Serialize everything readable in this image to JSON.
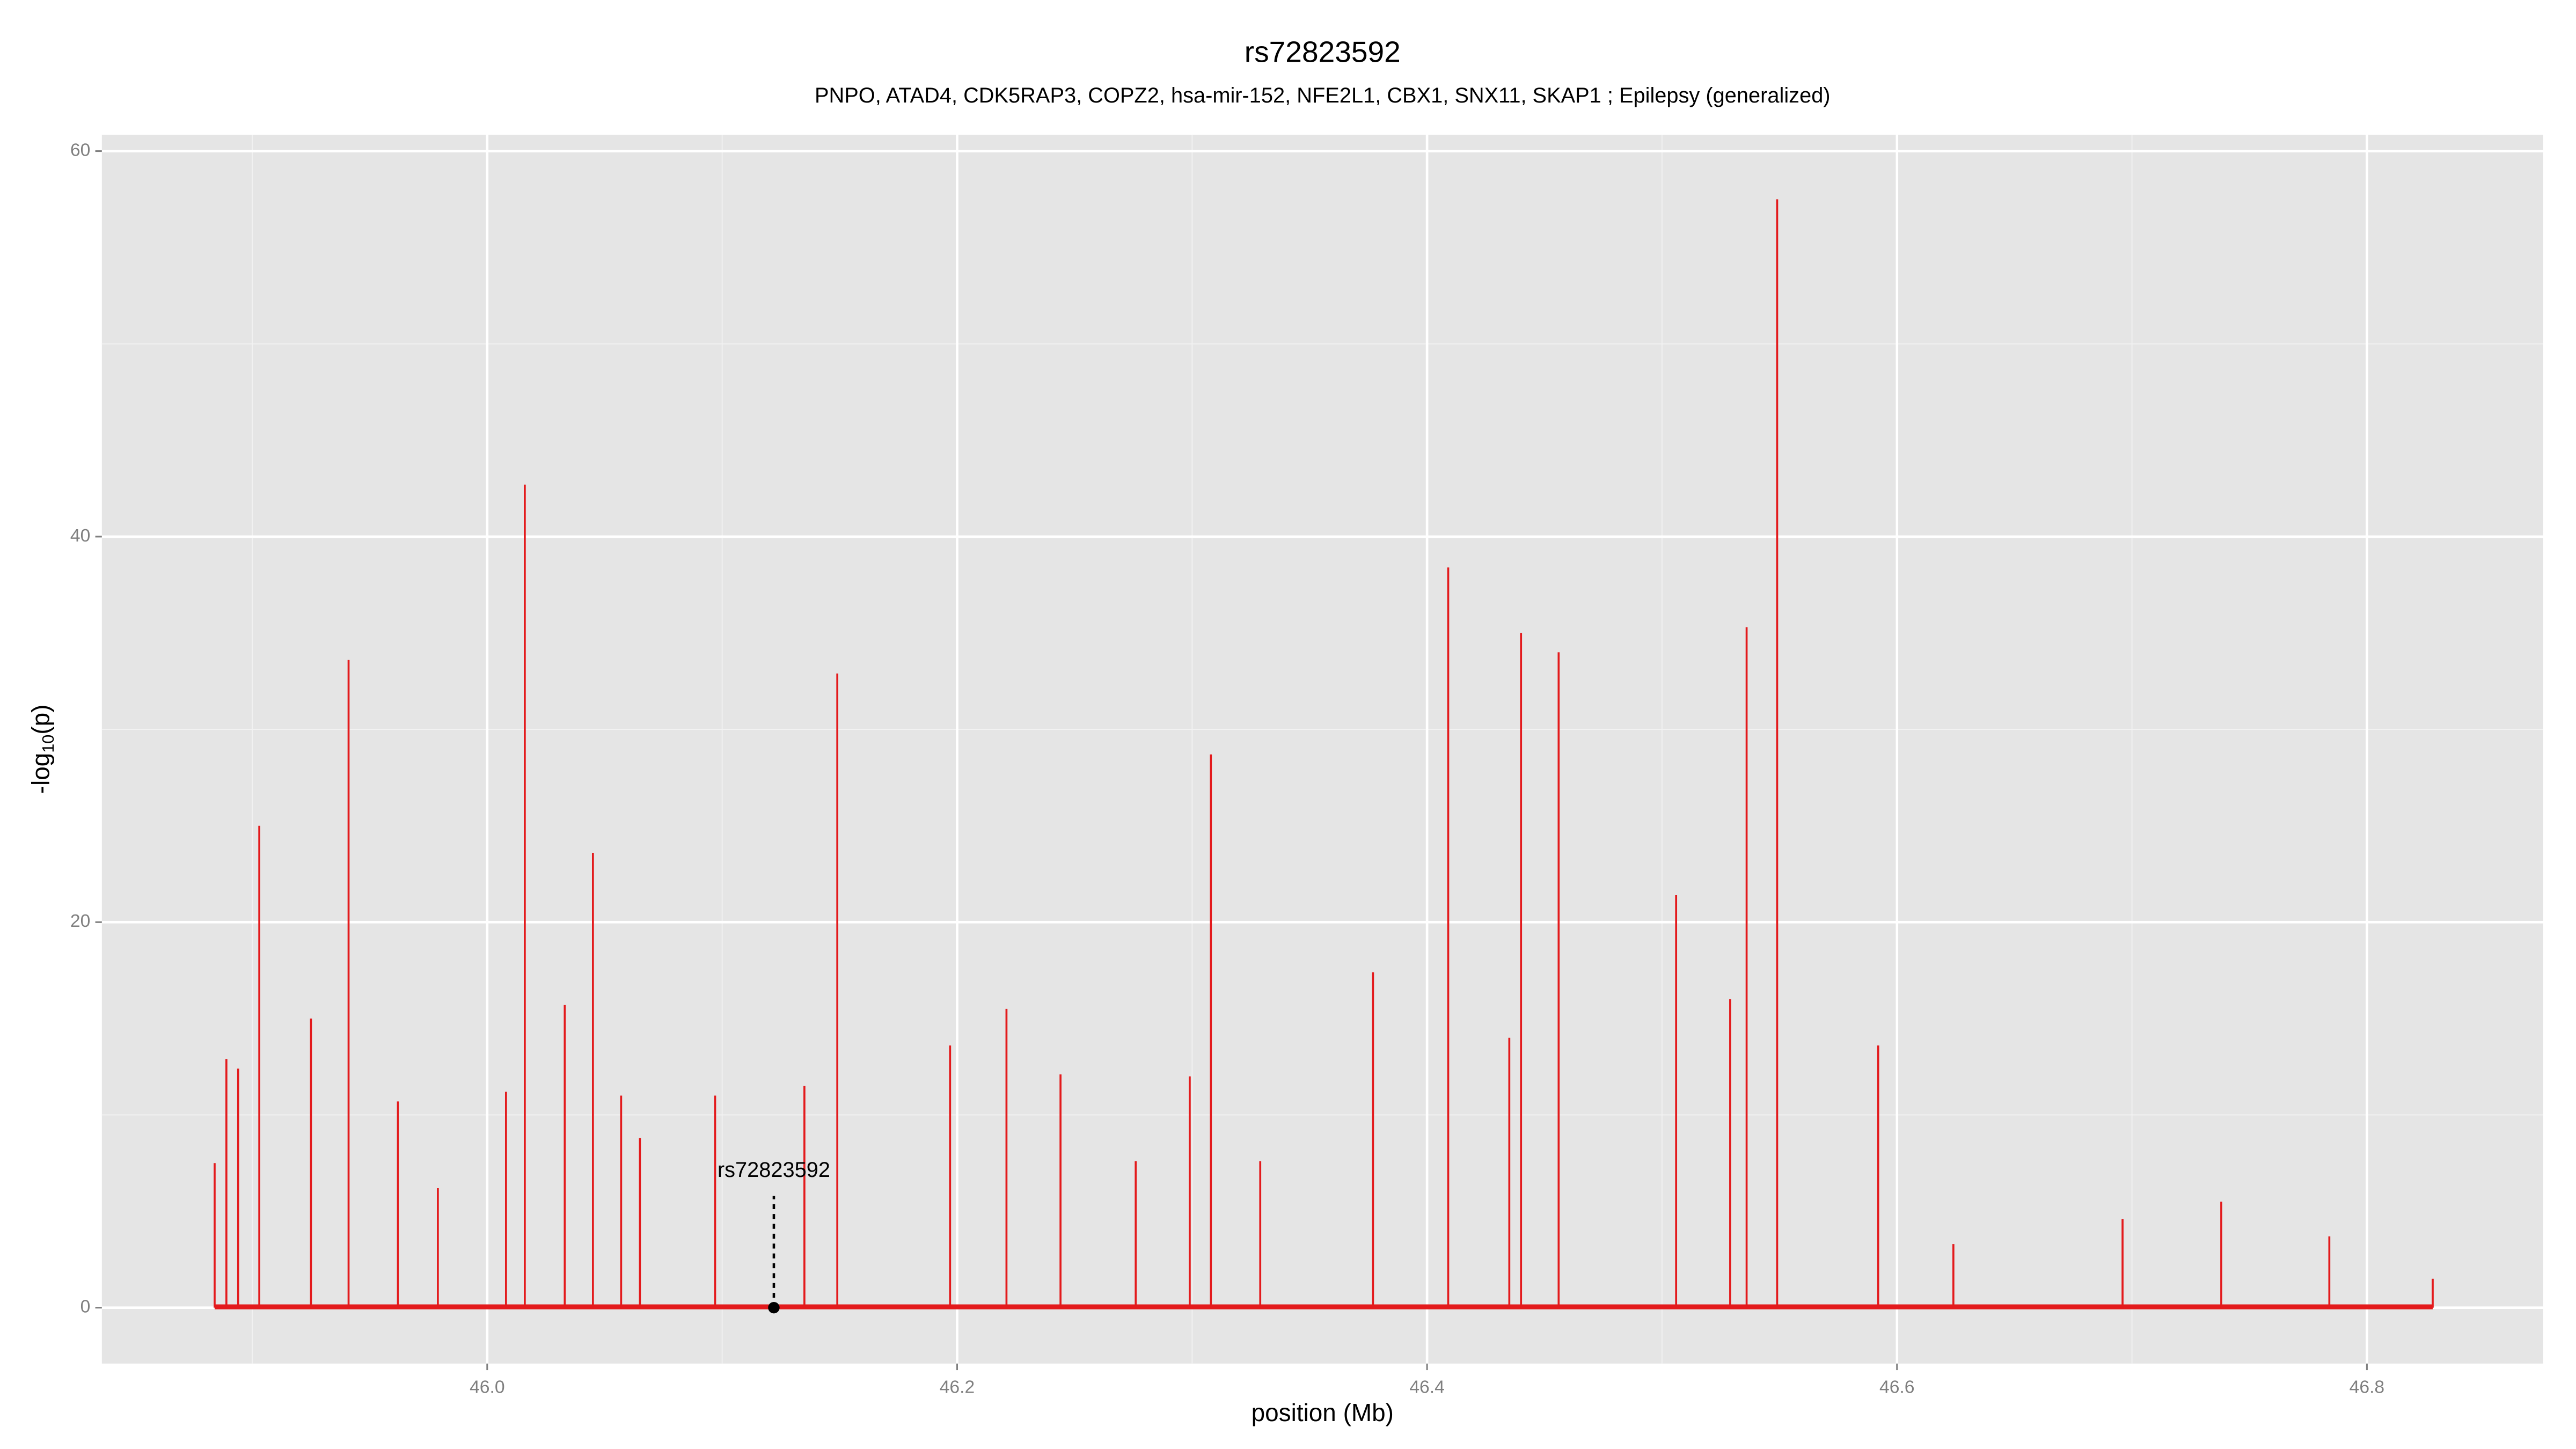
{
  "chart_data": {
    "type": "spike",
    "title": "rs72823592",
    "subtitle": "PNPO, ATAD4, CDK5RAP3, COPZ2, hsa-mir-152, NFE2L1, CBX1, SNX11, SKAP1 ; Epilepsy (generalized)",
    "x_label": "position (Mb)",
    "y_label_parts": [
      "-log",
      "10",
      "(p)"
    ],
    "color": "#e31a1c",
    "xlim": [
      45.836,
      46.875
    ],
    "ylim": [
      -2.9,
      60.85
    ],
    "xticks": [
      {
        "value": 46,
        "label": "46.0"
      },
      46.2,
      46.4,
      46.6,
      46.8
    ],
    "yticks": [
      0,
      20,
      40,
      60
    ],
    "minor_xticks": [
      45.9,
      46.1,
      46.3,
      46.5,
      46.7
    ],
    "minor_yticks": [
      10,
      30,
      50
    ],
    "grid": true,
    "x": [
      45.884,
      45.889,
      45.894,
      45.903,
      45.925,
      45.941,
      45.962,
      45.979,
      46.008,
      46.016,
      46.033,
      46.045,
      46.057,
      46.065,
      46.097,
      46.135,
      46.149,
      46.197,
      46.221,
      46.244,
      46.276,
      46.299,
      46.308,
      46.329,
      46.377,
      46.409,
      46.435,
      46.44,
      46.456,
      46.506,
      46.529,
      46.536,
      46.549,
      46.592,
      46.624,
      46.696,
      46.738,
      46.784,
      46.828
    ],
    "values": [
      7.5,
      12.9,
      12.4,
      25,
      15,
      33.6,
      10.7,
      6.2,
      11.2,
      42.7,
      15.7,
      23.6,
      11,
      8.8,
      11,
      11.5,
      32.9,
      13.6,
      15.5,
      12.1,
      7.6,
      12,
      28.7,
      7.6,
      17.4,
      38.4,
      14,
      35,
      34,
      21.4,
      16,
      35.3,
      57.5,
      13.6,
      3.3,
      4.6,
      5.5,
      3.7,
      1.5
    ],
    "annotation": {
      "label": "rs72823592",
      "x": 46.122,
      "y": 0
    }
  }
}
